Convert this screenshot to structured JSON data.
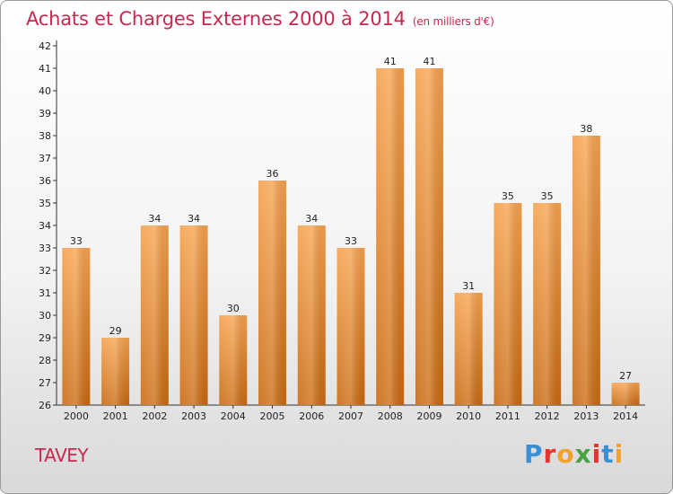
{
  "chart_data": {
    "type": "bar",
    "title": "Achats et Charges Externes 2000 à 2014",
    "subtitle": "(en milliers d'€)",
    "categories": [
      "2000",
      "2001",
      "2002",
      "2003",
      "2004",
      "2005",
      "2006",
      "2007",
      "2008",
      "2009",
      "2010",
      "2011",
      "2012",
      "2013",
      "2014"
    ],
    "values": [
      33,
      29,
      34,
      34,
      30,
      36,
      34,
      33,
      41,
      41,
      31,
      35,
      35,
      38,
      27
    ],
    "ylim": [
      26,
      42
    ],
    "yticks": [
      26,
      27,
      28,
      29,
      30,
      31,
      32,
      33,
      34,
      35,
      36,
      37,
      38,
      39,
      40,
      41,
      42
    ],
    "grid": false,
    "bar_color": "#f0902a"
  },
  "footer": {
    "city": "TAVEY",
    "logo_letters": [
      "P",
      "r",
      "o",
      "x",
      "i",
      "t",
      "i"
    ],
    "logo_colors": [
      "#3a8fd6",
      "#e3342f",
      "#f2a12e",
      "#48a23f",
      "#e3342f",
      "#3a8fd6",
      "#f2a12e"
    ]
  }
}
